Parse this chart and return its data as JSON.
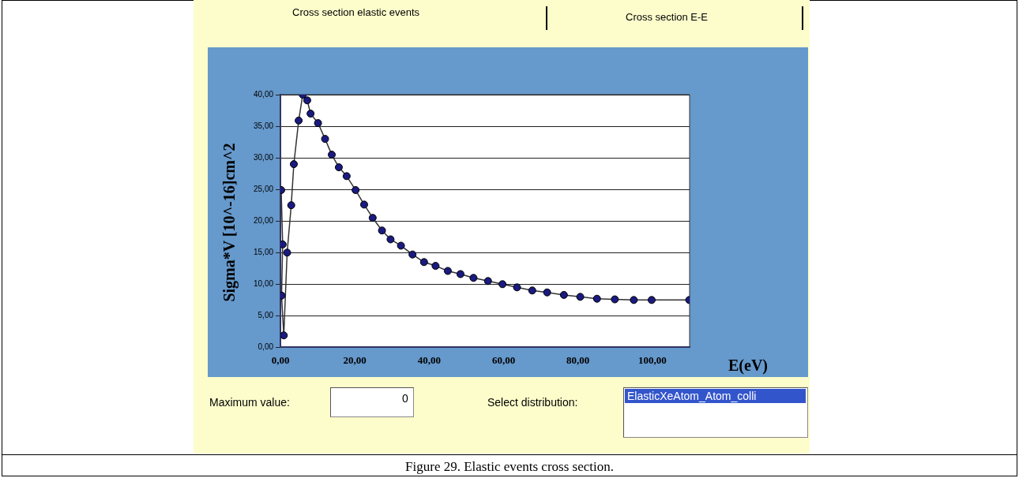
{
  "chart_data": {
    "type": "line",
    "xlabel": "E(eV)",
    "ylabel": "Sigma*V [10^-16]cm^2",
    "annotations": [
      "Cross section elastic events",
      "Cross section E-E",
      "Maximum value:",
      "0",
      "Select distribution:",
      "ElasticXeAtom_Atom_colli",
      "Figure 29. Elastic events cross section."
    ],
    "x": [
      0.2,
      0.6,
      0.3,
      0.9,
      1.8,
      2.9,
      3.6,
      4.9,
      6.0,
      7.2,
      8.1,
      10.1,
      12.0,
      13.8,
      15.7,
      17.8,
      20.2,
      22.5,
      24.8,
      27.3,
      29.6,
      32.4,
      35.5,
      38.6,
      41.7,
      45.0,
      48.4,
      51.9,
      55.8,
      59.7,
      63.6,
      67.7,
      71.7,
      76.2,
      80.6,
      85.1,
      89.9,
      95.0,
      99.8,
      109.9
    ],
    "series": [
      {
        "color": "#1a1a80",
        "values": [
          24.9,
          16.3,
          8.2,
          1.9,
          15.0,
          22.5,
          29.0,
          35.9,
          40.0,
          39.1,
          37.0,
          35.5,
          33.0,
          30.5,
          28.5,
          27.1,
          24.9,
          22.6,
          20.5,
          18.5,
          17.1,
          16.1,
          14.7,
          13.5,
          12.9,
          12.1,
          11.6,
          11.0,
          10.5,
          10.0,
          9.5,
          9.0,
          8.7,
          8.3,
          8.0,
          7.7,
          7.6,
          7.5,
          7.5,
          7.5
        ]
      }
    ],
    "xlim": [
      0,
      110
    ],
    "xticks": [
      {
        "value": 0,
        "label": "0,00"
      },
      {
        "value": 20,
        "label": "20,00"
      },
      {
        "value": 40,
        "label": "40,00"
      },
      {
        "value": 60,
        "label": "60,00"
      },
      {
        "value": 80,
        "label": "80,00"
      },
      {
        "value": 100,
        "label": "100,00"
      }
    ],
    "ylim": [
      0,
      40
    ],
    "yticks": [
      {
        "value": 0,
        "label": "0,00"
      },
      {
        "value": 5,
        "label": "5,00"
      },
      {
        "value": 10,
        "label": "10,00"
      },
      {
        "value": 15,
        "label": "15,00"
      },
      {
        "value": 20,
        "label": "20,00"
      },
      {
        "value": 25,
        "label": "25,00"
      },
      {
        "value": 30,
        "label": "30,00"
      },
      {
        "value": 35,
        "label": "35,00"
      },
      {
        "value": 40,
        "label": "40,00"
      }
    ],
    "grid": "y",
    "legend": false,
    "marker": "circle",
    "line_style": "solid"
  }
}
